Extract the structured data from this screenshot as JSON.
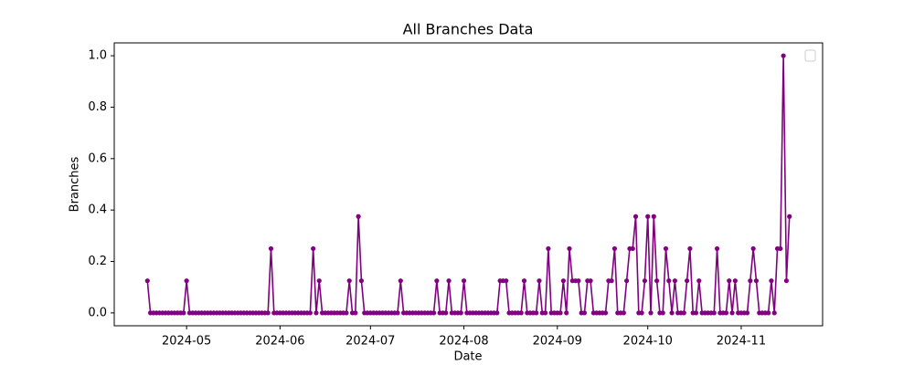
{
  "chart_data": {
    "type": "line",
    "title": "All Branches Data",
    "x_label": "Date",
    "y_label": "Branches",
    "color": "purple",
    "x": [
      "2024-04-18",
      "2024-04-19",
      "2024-04-20",
      "2024-04-21",
      "2024-04-22",
      "2024-04-23",
      "2024-04-24",
      "2024-04-25",
      "2024-04-26",
      "2024-04-27",
      "2024-04-28",
      "2024-04-29",
      "2024-04-30",
      "2024-05-01",
      "2024-05-02",
      "2024-05-03",
      "2024-05-04",
      "2024-05-05",
      "2024-05-06",
      "2024-05-07",
      "2024-05-08",
      "2024-05-09",
      "2024-05-10",
      "2024-05-11",
      "2024-05-12",
      "2024-05-13",
      "2024-05-14",
      "2024-05-15",
      "2024-05-16",
      "2024-05-17",
      "2024-05-18",
      "2024-05-19",
      "2024-05-20",
      "2024-05-21",
      "2024-05-22",
      "2024-05-23",
      "2024-05-24",
      "2024-05-25",
      "2024-05-26",
      "2024-05-27",
      "2024-05-28",
      "2024-05-29",
      "2024-05-30",
      "2024-05-31",
      "2024-06-01",
      "2024-06-02",
      "2024-06-03",
      "2024-06-04",
      "2024-06-05",
      "2024-06-06",
      "2024-06-07",
      "2024-06-08",
      "2024-06-09",
      "2024-06-10",
      "2024-06-11",
      "2024-06-12",
      "2024-06-13",
      "2024-06-14",
      "2024-06-15",
      "2024-06-16",
      "2024-06-17",
      "2024-06-18",
      "2024-06-19",
      "2024-06-20",
      "2024-06-21",
      "2024-06-22",
      "2024-06-23",
      "2024-06-24",
      "2024-06-25",
      "2024-06-26",
      "2024-06-27",
      "2024-06-28",
      "2024-06-29",
      "2024-06-30",
      "2024-07-01",
      "2024-07-02",
      "2024-07-03",
      "2024-07-04",
      "2024-07-05",
      "2024-07-06",
      "2024-07-07",
      "2024-07-08",
      "2024-07-09",
      "2024-07-10",
      "2024-07-11",
      "2024-07-12",
      "2024-07-13",
      "2024-07-14",
      "2024-07-15",
      "2024-07-16",
      "2024-07-17",
      "2024-07-18",
      "2024-07-19",
      "2024-07-20",
      "2024-07-21",
      "2024-07-22",
      "2024-07-23",
      "2024-07-24",
      "2024-07-25",
      "2024-07-26",
      "2024-07-27",
      "2024-07-28",
      "2024-07-29",
      "2024-07-30",
      "2024-07-31",
      "2024-08-01",
      "2024-08-02",
      "2024-08-03",
      "2024-08-04",
      "2024-08-05",
      "2024-08-06",
      "2024-08-07",
      "2024-08-08",
      "2024-08-09",
      "2024-08-10",
      "2024-08-11",
      "2024-08-12",
      "2024-08-13",
      "2024-08-14",
      "2024-08-15",
      "2024-08-16",
      "2024-08-17",
      "2024-08-18",
      "2024-08-19",
      "2024-08-20",
      "2024-08-21",
      "2024-08-22",
      "2024-08-23",
      "2024-08-24",
      "2024-08-25",
      "2024-08-26",
      "2024-08-27",
      "2024-08-28",
      "2024-08-29",
      "2024-08-30",
      "2024-08-31",
      "2024-09-01",
      "2024-09-02",
      "2024-09-03",
      "2024-09-04",
      "2024-09-05",
      "2024-09-06",
      "2024-09-07",
      "2024-09-08",
      "2024-09-09",
      "2024-09-10",
      "2024-09-11",
      "2024-09-12",
      "2024-09-13",
      "2024-09-14",
      "2024-09-15",
      "2024-09-16",
      "2024-09-17",
      "2024-09-18",
      "2024-09-19",
      "2024-09-20",
      "2024-09-21",
      "2024-09-22",
      "2024-09-23",
      "2024-09-24",
      "2024-09-25",
      "2024-09-26",
      "2024-09-27",
      "2024-09-28",
      "2024-09-29",
      "2024-09-30",
      "2024-10-01",
      "2024-10-02",
      "2024-10-03",
      "2024-10-04",
      "2024-10-05",
      "2024-10-06",
      "2024-10-07",
      "2024-10-08",
      "2024-10-09",
      "2024-10-10",
      "2024-10-11",
      "2024-10-12",
      "2024-10-13",
      "2024-10-14",
      "2024-10-15",
      "2024-10-16",
      "2024-10-17",
      "2024-10-18",
      "2024-10-19",
      "2024-10-20",
      "2024-10-21",
      "2024-10-22",
      "2024-10-23",
      "2024-10-24",
      "2024-10-25",
      "2024-10-26",
      "2024-10-27",
      "2024-10-28",
      "2024-10-29",
      "2024-10-30",
      "2024-10-31",
      "2024-11-01",
      "2024-11-02",
      "2024-11-03",
      "2024-11-04",
      "2024-11-05",
      "2024-11-06",
      "2024-11-07",
      "2024-11-08",
      "2024-11-09",
      "2024-11-10",
      "2024-11-11",
      "2024-11-12",
      "2024-11-13",
      "2024-11-14",
      "2024-11-15",
      "2024-11-16",
      "2024-11-17"
    ],
    "values": [
      0.125,
      0,
      0,
      0,
      0,
      0,
      0,
      0,
      0,
      0,
      0,
      0,
      0,
      0.125,
      0,
      0,
      0,
      0,
      0,
      0,
      0,
      0,
      0,
      0,
      0,
      0,
      0,
      0,
      0,
      0,
      0,
      0,
      0,
      0,
      0,
      0,
      0,
      0,
      0,
      0,
      0,
      0.25,
      0,
      0,
      0,
      0,
      0,
      0,
      0,
      0,
      0,
      0,
      0,
      0,
      0,
      0.25,
      0,
      0.125,
      0,
      0,
      0,
      0,
      0,
      0,
      0,
      0,
      0,
      0.125,
      0,
      0,
      0.375,
      0.125,
      0,
      0,
      0,
      0,
      0,
      0,
      0,
      0,
      0,
      0,
      0,
      0,
      0.125,
      0,
      0,
      0,
      0,
      0,
      0,
      0,
      0,
      0,
      0,
      0,
      0.125,
      0,
      0,
      0,
      0.125,
      0,
      0,
      0,
      0,
      0.125,
      0,
      0,
      0,
      0,
      0,
      0,
      0,
      0,
      0,
      0,
      0,
      0.125,
      0.125,
      0.125,
      0,
      0,
      0,
      0,
      0,
      0.125,
      0,
      0,
      0,
      0,
      0.125,
      0,
      0,
      0.25,
      0,
      0,
      0,
      0,
      0.125,
      0,
      0.25,
      0.125,
      0.125,
      0.125,
      0,
      0,
      0.125,
      0.125,
      0,
      0,
      0,
      0,
      0,
      0.125,
      0.125,
      0.25,
      0,
      0,
      0,
      0.125,
      0.25,
      0.25,
      0.375,
      0,
      0,
      0.125,
      0.375,
      0,
      0.375,
      0.125,
      0,
      0,
      0.25,
      0.125,
      0,
      0.125,
      0,
      0,
      0,
      0.125,
      0.25,
      0,
      0,
      0.125,
      0,
      0,
      0,
      0,
      0,
      0.25,
      0,
      0,
      0,
      0.125,
      0,
      0.125,
      0,
      0,
      0,
      0,
      0.125,
      0.25,
      0.125,
      0,
      0,
      0,
      0,
      0.125,
      0,
      0.25,
      0.25,
      1.0,
      0.125,
      0.375
    ],
    "xlim": [
      "2024-04-07",
      "2024-11-28"
    ],
    "xticks": [
      {
        "value": "2024-05-01",
        "label": "2024-05"
      },
      {
        "value": "2024-06-01",
        "label": "2024-06"
      },
      {
        "value": "2024-07-01",
        "label": "2024-07"
      },
      {
        "value": "2024-08-01",
        "label": "2024-08"
      },
      {
        "value": "2024-09-01",
        "label": "2024-09"
      },
      {
        "value": "2024-10-01",
        "label": "2024-10"
      },
      {
        "value": "2024-11-01",
        "label": "2024-11"
      }
    ],
    "ylim": [
      -0.05,
      1.05
    ],
    "yticks": [
      {
        "value": 0,
        "label": "0.0"
      },
      {
        "value": 0.2,
        "label": "0.2"
      },
      {
        "value": 0.4,
        "label": "0.4"
      },
      {
        "value": 0.6,
        "label": "0.6"
      },
      {
        "value": 0.8,
        "label": "0.8"
      },
      {
        "value": 1,
        "label": "1.0"
      }
    ],
    "legend": "upper right"
  }
}
